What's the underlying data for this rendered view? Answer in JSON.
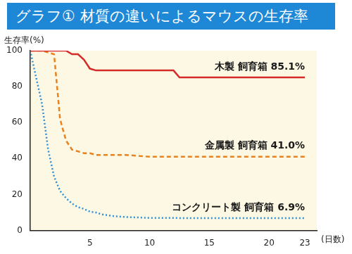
{
  "chart_data": {
    "type": "line",
    "title": "グラフ① 材質の違いによるマウスの生存率",
    "y_label": "生存率(%)",
    "x_label": "(日数)",
    "x": [
      0,
      1,
      1.5,
      2,
      2.5,
      3,
      3.5,
      4,
      4.5,
      5,
      5.5,
      6,
      7,
      8,
      10,
      12,
      12.5,
      13,
      15,
      20,
      23
    ],
    "series": [
      {
        "name": "木製 飼育箱 85.1%",
        "color": "#d42b2b",
        "line_style": "solid",
        "values": [
          100,
          100,
          100,
          100,
          100,
          100,
          98,
          98,
          95,
          90,
          89,
          89,
          89,
          89,
          89,
          89,
          85.1,
          85.1,
          85.1,
          85.1,
          85.1
        ]
      },
      {
        "name": "金属製 飼育箱 41.0%",
        "color": "#e8821e",
        "line_style": "dashed",
        "values": [
          100,
          100,
          99,
          98,
          62,
          50,
          45,
          44,
          43,
          43,
          42,
          42,
          42,
          42,
          41,
          41,
          41,
          41,
          41,
          41,
          41
        ]
      },
      {
        "name": "コンクリート製 飼育箱 6.9%",
        "color": "#2e8fd6",
        "line_style": "dotted",
        "values": [
          100,
          70,
          45,
          30,
          22,
          18,
          15,
          13,
          12,
          10.5,
          10,
          9,
          8,
          7.5,
          7,
          7,
          6.9,
          6.9,
          6.9,
          6.9,
          6.9
        ]
      }
    ],
    "xlim": [
      0,
      24
    ],
    "ylim": [
      0,
      100
    ],
    "xticks": [
      5,
      10,
      15,
      20,
      23
    ],
    "yticks": [
      0,
      20,
      40,
      60,
      80,
      100
    ],
    "grid": false
  }
}
